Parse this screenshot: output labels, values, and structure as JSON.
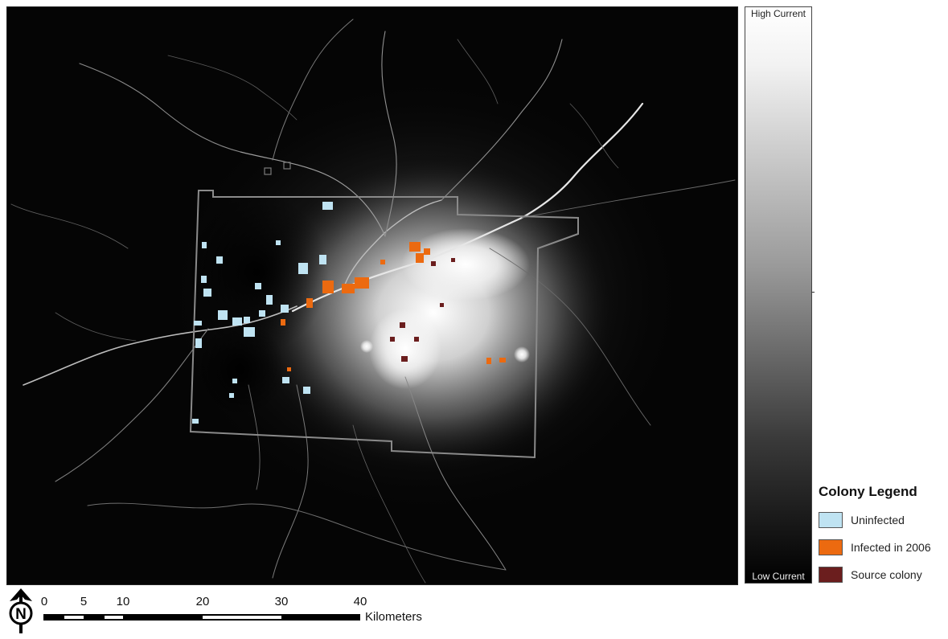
{
  "colorbar": {
    "high_label": "High Current",
    "low_label": "Low Current"
  },
  "legend": {
    "title": "Colony Legend",
    "items": [
      {
        "label": "Uninfected",
        "color": "#bfe3f2"
      },
      {
        "label": "Infected in 2006",
        "color": "#ec6a10"
      },
      {
        "label": "Source colony",
        "color": "#6b1e1e"
      }
    ]
  },
  "north_arrow": {
    "letter": "N"
  },
  "scale_bar": {
    "ticks": [
      "0",
      "5",
      "10",
      "20",
      "30",
      "40"
    ],
    "unit": "Kilometers"
  },
  "colors": {
    "uninfected": "#bfe3f2",
    "infected": "#ec6a10",
    "source": "#6b1e1e",
    "boundary": "#8a8a8a"
  }
}
